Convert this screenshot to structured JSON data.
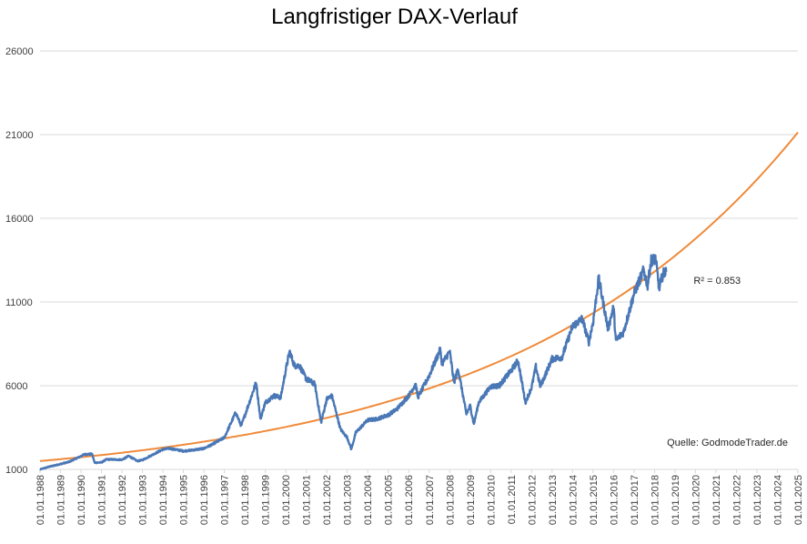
{
  "chart_data": {
    "type": "line",
    "title": "Langfristiger DAX-Verlauf",
    "xlabel": "",
    "ylabel": "",
    "ylim": [
      1000,
      26000
    ],
    "y_ticks": [
      "1000",
      "6000",
      "11000",
      "16000",
      "21000",
      "26000"
    ],
    "xlim": [
      "1988-01-01",
      "2025-01-01"
    ],
    "x_ticks": [
      "01.01.1988",
      "01.01.1989",
      "01.01.1990",
      "01.01.1991",
      "01.01.1992",
      "01.01.1993",
      "01.01.1994",
      "01.01.1995",
      "01.01.1996",
      "01.01.1997",
      "01.01.1998",
      "01.01.1999",
      "01.01.2000",
      "01.01.2001",
      "01.01.2002",
      "01.01.2003",
      "01.01.2004",
      "01.01.2005",
      "01.01.2006",
      "01.01.2007",
      "01.01.2008",
      "01.01.2009",
      "01.01.2010",
      "01.01.2011",
      "01.01.2012",
      "01.01.2013",
      "01.01.2014",
      "01.01.2015",
      "01.01.2016",
      "01.01.2017",
      "01.01.2018",
      "01.01.2019",
      "01.01.2020",
      "01.01.2021",
      "01.01.2022",
      "01.01.2023",
      "01.01.2024",
      "01.01.2025"
    ],
    "grid": "horizontal",
    "colors": {
      "dax": "#4a78b6",
      "trend": "#ef8a3a",
      "grid": "#d9d9d9"
    },
    "series": [
      {
        "kind": "index",
        "values": [
          [
            "1988-01-01",
            1000
          ],
          [
            "1988-06-01",
            1150
          ],
          [
            "1989-01-01",
            1320
          ],
          [
            "1989-06-01",
            1450
          ],
          [
            "1989-12-31",
            1790
          ],
          [
            "1990-03-01",
            1900
          ],
          [
            "1990-07-15",
            1920
          ],
          [
            "1990-09-01",
            1400
          ],
          [
            "1991-01-01",
            1420
          ],
          [
            "1991-04-01",
            1600
          ],
          [
            "1991-12-31",
            1580
          ],
          [
            "1992-05-01",
            1800
          ],
          [
            "1992-10-01",
            1500
          ],
          [
            "1993-01-01",
            1560
          ],
          [
            "1993-12-31",
            2200
          ],
          [
            "1994-05-01",
            2250
          ],
          [
            "1994-12-31",
            2100
          ],
          [
            "1995-06-01",
            2150
          ],
          [
            "1995-12-31",
            2250
          ],
          [
            "1996-06-01",
            2500
          ],
          [
            "1996-12-31",
            2900
          ],
          [
            "1997-07-20",
            4400
          ],
          [
            "1997-10-28",
            3600
          ],
          [
            "1998-07-20",
            6200
          ],
          [
            "1998-10-05",
            4000
          ],
          [
            "1998-12-31",
            5000
          ],
          [
            "1999-06-01",
            5400
          ],
          [
            "1999-10-01",
            5300
          ],
          [
            "1999-12-31",
            6950
          ],
          [
            "2000-03-07",
            8050
          ],
          [
            "2000-06-01",
            7200
          ],
          [
            "2000-09-01",
            7200
          ],
          [
            "2000-12-31",
            6400
          ],
          [
            "2001-06-01",
            6100
          ],
          [
            "2001-09-21",
            3800
          ],
          [
            "2001-12-31",
            5200
          ],
          [
            "2002-04-01",
            5400
          ],
          [
            "2002-09-01",
            3400
          ],
          [
            "2002-12-31",
            2900
          ],
          [
            "2003-03-12",
            2200
          ],
          [
            "2003-06-01",
            3200
          ],
          [
            "2003-12-31",
            3950
          ],
          [
            "2004-06-01",
            4000
          ],
          [
            "2004-12-31",
            4250
          ],
          [
            "2005-06-01",
            4600
          ],
          [
            "2005-12-31",
            5400
          ],
          [
            "2006-05-01",
            6100
          ],
          [
            "2006-06-13",
            5300
          ],
          [
            "2006-12-31",
            6600
          ],
          [
            "2007-07-13",
            8150
          ],
          [
            "2007-08-16",
            7300
          ],
          [
            "2007-12-31",
            8050
          ],
          [
            "2008-03-17",
            6200
          ],
          [
            "2008-05-30",
            7000
          ],
          [
            "2008-10-24",
            4300
          ],
          [
            "2008-12-31",
            4800
          ],
          [
            "2009-03-06",
            3700
          ],
          [
            "2009-06-01",
            5000
          ],
          [
            "2009-12-31",
            5950
          ],
          [
            "2010-06-01",
            6000
          ],
          [
            "2010-12-31",
            6900
          ],
          [
            "2011-05-02",
            7500
          ],
          [
            "2011-09-12",
            5000
          ],
          [
            "2011-12-31",
            5900
          ],
          [
            "2012-03-16",
            7150
          ],
          [
            "2012-06-04",
            5950
          ],
          [
            "2012-12-31",
            7600
          ],
          [
            "2013-06-24",
            7700
          ],
          [
            "2013-12-31",
            9550
          ],
          [
            "2014-06-20",
            10000
          ],
          [
            "2014-10-16",
            8600
          ],
          [
            "2014-12-31",
            9800
          ],
          [
            "2015-04-10",
            12400
          ],
          [
            "2015-09-24",
            9400
          ],
          [
            "2015-12-31",
            10700
          ],
          [
            "2016-02-11",
            8700
          ],
          [
            "2016-06-27",
            9200
          ],
          [
            "2016-12-31",
            11500
          ],
          [
            "2017-06-20",
            12900
          ],
          [
            "2017-08-29",
            12000
          ],
          [
            "2017-11-03",
            13500
          ],
          [
            "2018-01-23",
            13550
          ],
          [
            "2018-03-23",
            11800
          ],
          [
            "2018-06-01",
            12700
          ],
          [
            "2018-07-31",
            12800
          ]
        ]
      },
      {
        "kind": "trend",
        "equation": "exponential",
        "start": [
          "1988-01-01",
          1500
        ],
        "growth_per_year": 0.0715
      }
    ],
    "annotations": [
      {
        "text": "R² = 0.853",
        "at": [
          "2020-01-01",
          12300
        ]
      },
      {
        "text": "Quelle: GodmodeTrader.de"
      }
    ]
  }
}
